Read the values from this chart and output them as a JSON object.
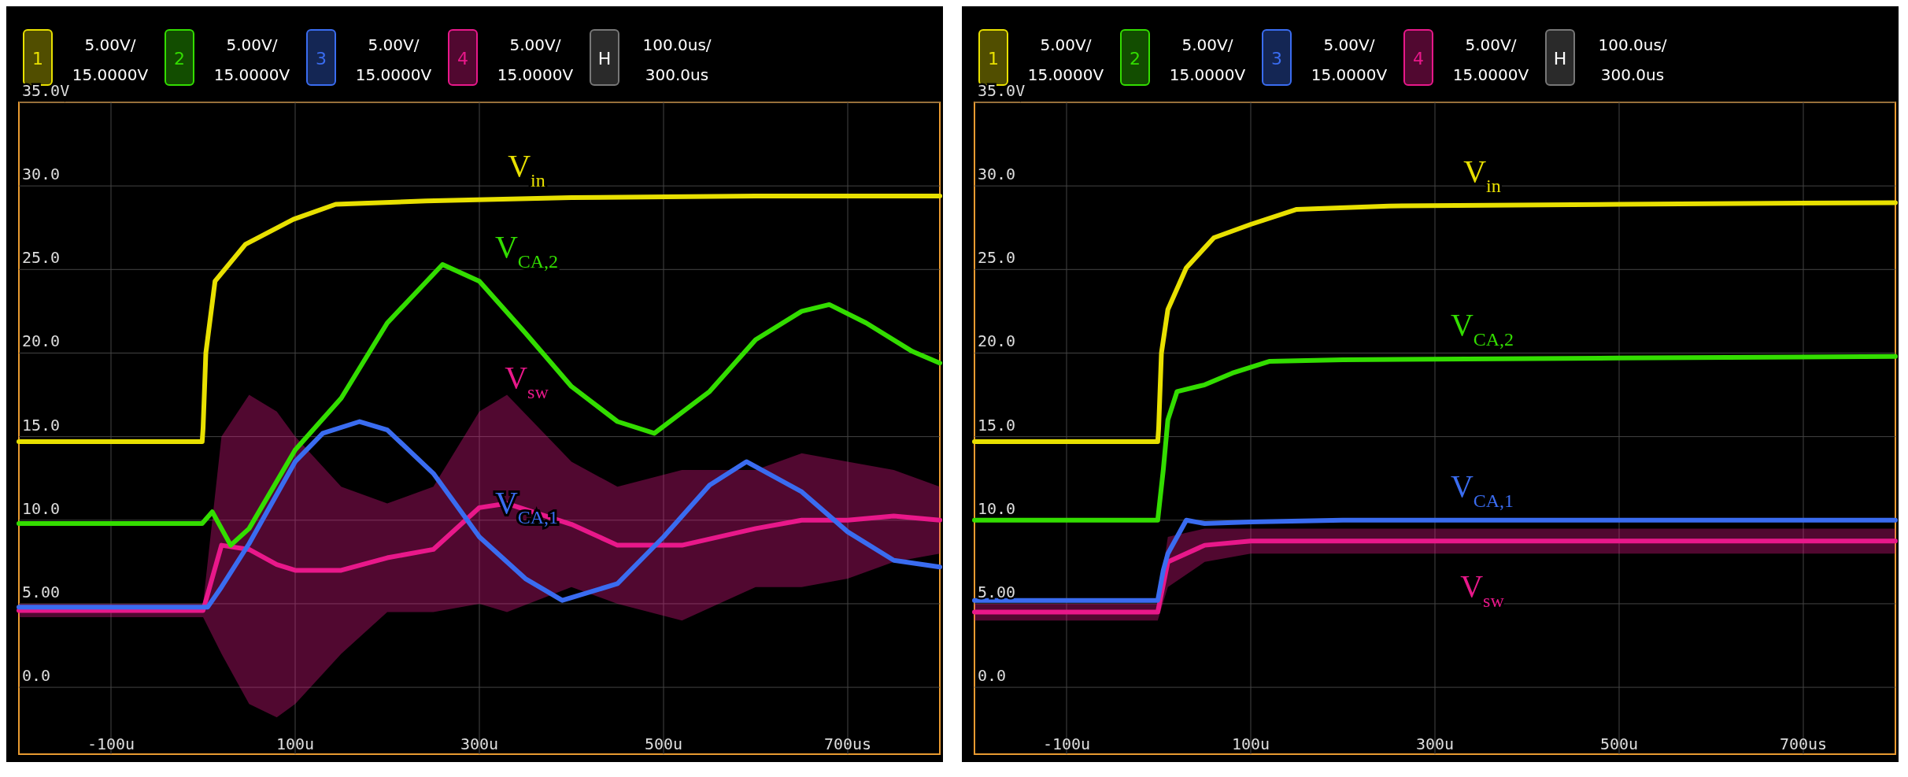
{
  "chart_data": [
    {
      "type": "line",
      "annotations": [
        "1",
        "5.00V/",
        "15.0000V",
        "2",
        "5.00V/",
        "15.0000V",
        "3",
        "5.00V/",
        "15.0000V",
        "4",
        "5.00V/",
        "15.0000V",
        "H",
        "100.0us/",
        "300.0us"
      ],
      "xlim": [
        -200,
        800
      ],
      "xticks": [
        {
          "value": -100,
          "label": "-100u"
        },
        {
          "value": 100,
          "label": "100u"
        },
        {
          "value": 300,
          "label": "300u"
        },
        {
          "value": 500,
          "label": "500u"
        },
        {
          "value": 700,
          "label": "700us"
        }
      ],
      "ylim": [
        -4,
        35
      ],
      "yticks": [
        {
          "value": 35,
          "label": "35.0V"
        },
        {
          "value": 30,
          "label": "30.0"
        },
        {
          "value": 25,
          "label": "25.0"
        },
        {
          "value": 20,
          "label": "20.0"
        },
        {
          "value": 15,
          "label": "15.0"
        },
        {
          "value": 10,
          "label": "10.0"
        },
        {
          "value": 5,
          "label": "5.00"
        },
        {
          "value": 0,
          "label": "0.0"
        }
      ],
      "grid": true,
      "series": [
        {
          "name": "V$_{in}$",
          "color": "#e8e000",
          "x": [
            -200,
            -1,
            0,
            3,
            13,
            46,
            98,
            144,
            242,
            400,
            600,
            800
          ],
          "values": [
            14.7,
            14.7,
            15.5,
            20,
            24.3,
            26.5,
            28,
            28.9,
            29.1,
            29.3,
            29.4,
            29.4
          ]
        },
        {
          "name": "V$_{CA,2}$",
          "color": "#33dd00",
          "x": [
            -200,
            -1,
            10,
            30,
            50,
            100,
            150,
            200,
            260,
            300,
            350,
            400,
            450,
            490,
            550,
            600,
            650,
            680,
            720,
            770,
            800
          ],
          "values": [
            9.8,
            9.8,
            10.5,
            8.5,
            9.5,
            14.2,
            17.3,
            21.8,
            25.3,
            24.3,
            21.2,
            18.0,
            15.9,
            15.2,
            17.7,
            20.8,
            22.5,
            22.9,
            21.8,
            20.1,
            19.4
          ]
        },
        {
          "name": "V$_{CA,1}$",
          "color": "#3a6cf0",
          "x": [
            -200,
            5,
            20,
            50,
            100,
            130,
            170,
            200,
            250,
            300,
            350,
            390,
            450,
            500,
            550,
            590,
            650,
            700,
            750,
            800
          ],
          "values": [
            4.8,
            4.8,
            6,
            8.6,
            13.5,
            15.2,
            15.9,
            15.4,
            12.8,
            9.0,
            6.5,
            5.2,
            6.2,
            9.0,
            12.1,
            13.5,
            11.7,
            9.3,
            7.6,
            7.2
          ]
        },
        {
          "name": "V$_{sw}$",
          "color": "#e8188a",
          "x": [
            -200,
            0,
            20,
            50,
            80,
            100,
            150,
            200,
            250,
            300,
            330,
            400,
            450,
            520,
            600,
            650,
            700,
            750,
            800
          ],
          "values": [
            4.6,
            4.6,
            8.5,
            8.25,
            7.35,
            7,
            7,
            7.75,
            8.25,
            10.75,
            11,
            9.75,
            8.5,
            8.5,
            9.5,
            10,
            10,
            10.25,
            10
          ],
          "lower": [
            4.2,
            4.2,
            2,
            -1,
            -1.8,
            -1,
            2,
            4.5,
            4.5,
            5,
            4.5,
            6,
            5,
            4,
            6,
            6,
            6.5,
            7.5,
            8
          ],
          "upper": [
            5,
            5,
            15,
            17.5,
            16.5,
            15,
            12,
            11,
            12,
            16.5,
            17.5,
            13.5,
            12,
            13,
            13,
            14,
            13.5,
            13,
            12
          ]
        }
      ]
    },
    {
      "type": "line",
      "annotations": [
        "1",
        "5.00V/",
        "15.0000V",
        "2",
        "5.00V/",
        "15.0000V",
        "3",
        "5.00V/",
        "15.0000V",
        "4",
        "5.00V/",
        "15.0000V",
        "H",
        "100.0us/",
        "300.0us"
      ],
      "xlim": [
        -200,
        800
      ],
      "xticks": [
        {
          "value": -100,
          "label": "-100u"
        },
        {
          "value": 100,
          "label": "100u"
        },
        {
          "value": 300,
          "label": "300u"
        },
        {
          "value": 500,
          "label": "500u"
        },
        {
          "value": 700,
          "label": "700us"
        }
      ],
      "ylim": [
        -4,
        35
      ],
      "yticks": [
        {
          "value": 35,
          "label": "35.0V"
        },
        {
          "value": 30,
          "label": "30.0"
        },
        {
          "value": 25,
          "label": "25.0"
        },
        {
          "value": 20,
          "label": "20.0"
        },
        {
          "value": 15,
          "label": "15.0"
        },
        {
          "value": 10,
          "label": "10.0"
        },
        {
          "value": 5,
          "label": "5.00"
        },
        {
          "value": 0,
          "label": "0.0"
        }
      ],
      "grid": true,
      "series": [
        {
          "name": "V$_{in}$",
          "color": "#e8e000",
          "x": [
            -200,
            -1,
            0,
            3,
            10,
            30,
            60,
            100,
            150,
            250,
            500,
            800
          ],
          "values": [
            14.7,
            14.7,
            15.5,
            20,
            22.6,
            25.1,
            26.9,
            27.7,
            28.6,
            28.8,
            28.9,
            29.0
          ]
        },
        {
          "name": "V$_{CA,2}$",
          "color": "#33dd00",
          "x": [
            -200,
            -1,
            5,
            10,
            20,
            50,
            80,
            120,
            200,
            500,
            800
          ],
          "values": [
            10,
            10,
            13,
            16,
            17.7,
            18.1,
            18.8,
            19.5,
            19.6,
            19.7,
            19.8
          ]
        },
        {
          "name": "V$_{CA,1}$",
          "color": "#3a6cf0",
          "x": [
            -200,
            -1,
            5,
            10,
            30,
            50,
            100,
            200,
            800
          ],
          "values": [
            5.2,
            5.2,
            7,
            8,
            10,
            9.8,
            9.9,
            10,
            10
          ]
        },
        {
          "name": "V$_{sw}$",
          "color": "#e8188a",
          "x": [
            -200,
            -1,
            10,
            50,
            100,
            800
          ],
          "values": [
            4.5,
            4.5,
            7.5,
            8.5,
            8.75,
            8.75
          ],
          "lower": [
            4,
            4,
            6,
            7.5,
            8,
            8
          ],
          "upper": [
            5,
            5,
            9,
            9.5,
            9.5,
            9.5
          ]
        }
      ]
    }
  ]
}
